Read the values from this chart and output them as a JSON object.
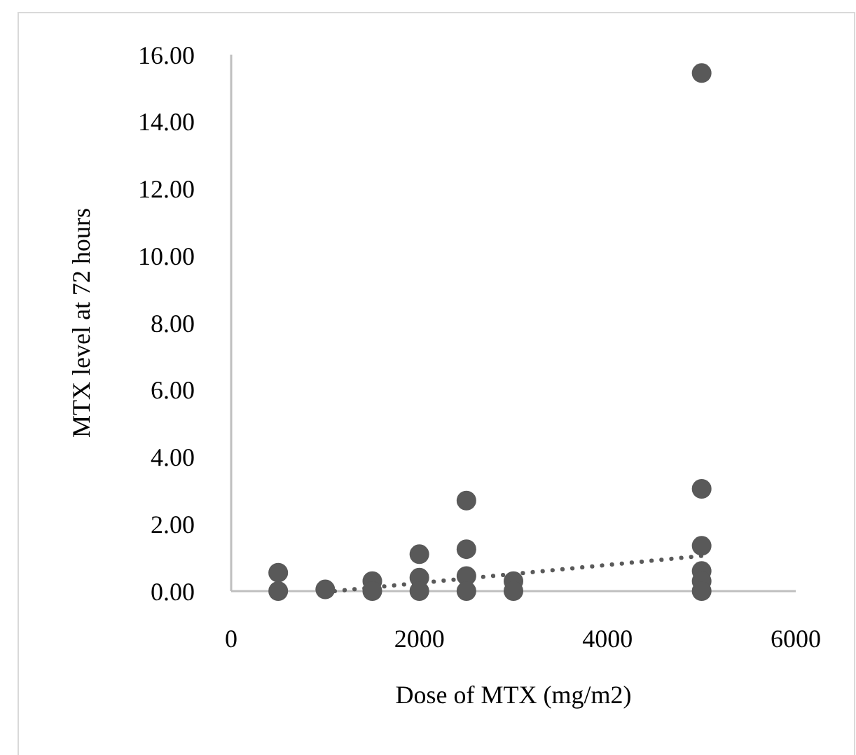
{
  "chart_data": {
    "type": "scatter",
    "xlabel": "Dose of MTX (mg/m2)",
    "ylabel": "MTX level at 72 hours",
    "xlim": [
      0,
      6000
    ],
    "xticks": [
      0,
      2000,
      4000,
      6000
    ],
    "ylim": [
      0,
      16
    ],
    "yticks": [
      {
        "value": 0,
        "label": "0.00"
      },
      {
        "value": 2,
        "label": "2.00"
      },
      {
        "value": 4,
        "label": "4.00"
      },
      {
        "value": 6,
        "label": "6.00"
      },
      {
        "value": 8,
        "label": "8.00"
      },
      {
        "value": 10,
        "label": "10.00"
      },
      {
        "value": 12,
        "label": "12.00"
      },
      {
        "value": 14,
        "label": "14.00"
      },
      {
        "value": 16,
        "label": "16.00"
      }
    ],
    "grid": false,
    "marker": "circle",
    "series": [
      {
        "color": "#595959",
        "x": [
          500,
          500,
          1000,
          1500,
          1500,
          2000,
          2000,
          2000,
          2500,
          2500,
          2500,
          2500,
          3000,
          3000,
          5000,
          5000,
          5000,
          5000,
          5000,
          5000
        ],
        "values": [
          0.55,
          0,
          0.05,
          0.3,
          0,
          1.1,
          0.4,
          0,
          2.7,
          1.25,
          0.45,
          0,
          0.3,
          0,
          15.45,
          3.05,
          1.35,
          0.6,
          0.3,
          0
        ]
      },
      {
        "type": "line",
        "color": "#595959",
        "line_style": "dotted",
        "marker": "none",
        "x": [
          1100,
          5000
        ],
        "values": [
          0,
          1.05
        ]
      }
    ]
  }
}
